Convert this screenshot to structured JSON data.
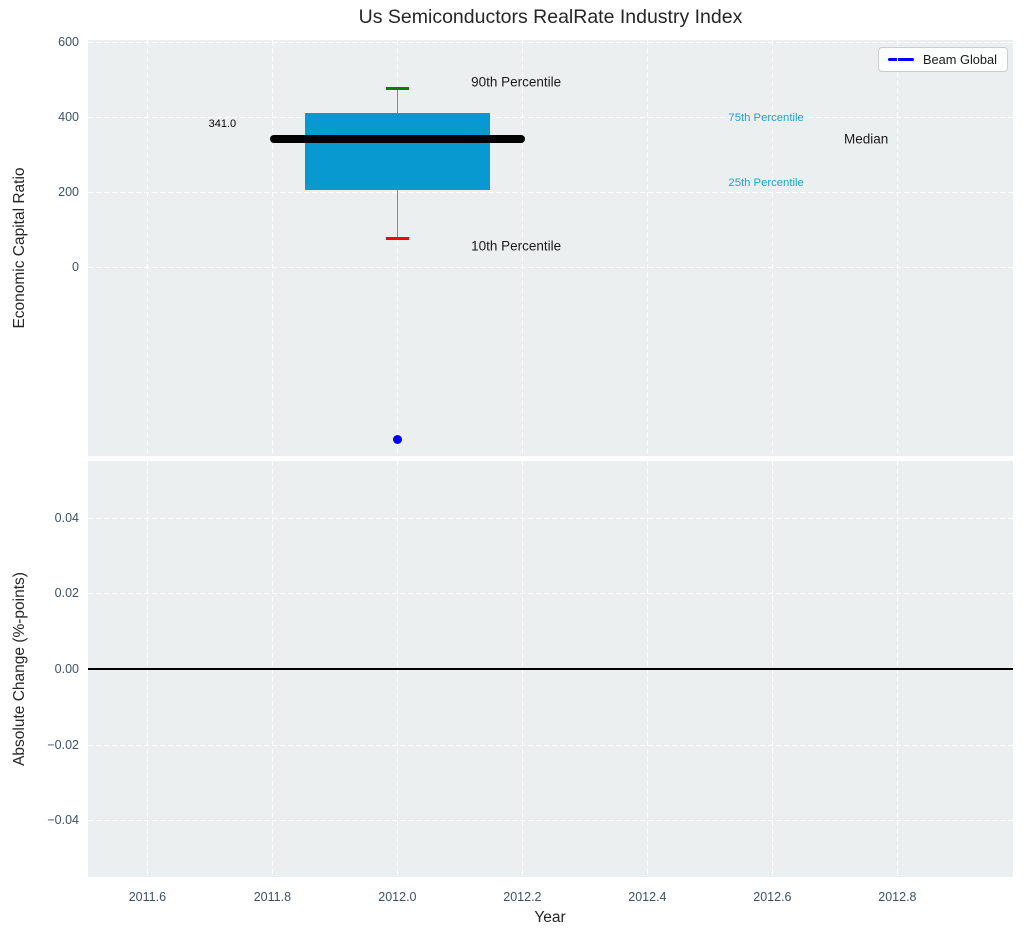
{
  "title": "Us Semiconductors RealRate Industry Index",
  "legend": {
    "label": "Beam Global",
    "line_color": "#0000ff",
    "loc": "upper right"
  },
  "colors": {
    "figure_bg": "#ffffff",
    "axes_bg": "#eceff0",
    "grid": "#ffffff",
    "tick_label": "#3d5166",
    "title": "#262626",
    "text": "#1a1a1a",
    "percentile_label": "#1ba2d5"
  },
  "chart_data": [
    {
      "type": "box",
      "panel": "top",
      "title": "Us Semiconductors RealRate Industry Index",
      "ylabel": "Economic Capital Ratio",
      "xlim": [
        2011.505,
        2012.985
      ],
      "ylim": [
        -505,
        605
      ],
      "xticks": [
        2011.6,
        2011.8,
        2012.0,
        2012.2,
        2012.4,
        2012.6,
        2012.8
      ],
      "xtick_labels": [],
      "yticks": [
        0,
        200,
        400,
        600
      ],
      "ytick_labels": [
        "0",
        "200",
        "400",
        "600"
      ],
      "grid": true,
      "legend_entries": [
        "Beam Global"
      ],
      "box": {
        "x": 2012.0,
        "p10": 75,
        "p25": 205,
        "median": 341.0,
        "p75": 410,
        "p90": 475,
        "box_halfwidth": 0.148,
        "median_halfwidth": 0.204,
        "cap_halfwidth": 0.018,
        "fill_color": "#0899d0",
        "median_color": "#000000",
        "whisker_color": "#888888",
        "cap_top_color": "#008000",
        "cap_bottom_color": "#ff0000"
      },
      "median_value_label": "341.0",
      "points": [
        {
          "name": "Beam Global",
          "x": 2012.0,
          "y": -460,
          "color": "#0000ff"
        }
      ],
      "annotations": [
        {
          "text": "90th Percentile",
          "x": 2012.19,
          "y": 493,
          "color": "#1a1a1a",
          "size": 13.5
        },
        {
          "text": "10th Percentile",
          "x": 2012.19,
          "y": 55,
          "color": "#1a1a1a",
          "size": 13.5
        },
        {
          "text": "75th Percentile",
          "x": 2012.59,
          "y": 397,
          "color": "#1ba2d5",
          "size": 11.3
        },
        {
          "text": "25th Percentile",
          "x": 2012.59,
          "y": 224,
          "color": "#1ba2d5",
          "size": 11.3
        },
        {
          "text": "Median",
          "x": 2012.75,
          "y": 341,
          "color": "#1a1a1a",
          "size": 13.5
        },
        {
          "text": "341.0",
          "x": 2011.72,
          "y": 382,
          "color": "#000000",
          "size": 11
        }
      ]
    },
    {
      "type": "line",
      "panel": "bottom",
      "xlabel": "Year",
      "ylabel": "Absolute Change (%-points)",
      "xlim": [
        2011.505,
        2012.985
      ],
      "ylim": [
        -0.055,
        0.055
      ],
      "xticks": [
        2011.6,
        2011.8,
        2012.0,
        2012.2,
        2012.4,
        2012.6,
        2012.8
      ],
      "xtick_labels": [
        "2011.6",
        "2011.8",
        "2012.0",
        "2012.2",
        "2012.4",
        "2012.6",
        "2012.8"
      ],
      "ytick_values": [
        0.04,
        0.02,
        0.0,
        -0.02,
        -0.04
      ],
      "ytick_labels": [
        "0.04",
        "0.02",
        "0.00",
        "−0.02",
        "−0.04"
      ],
      "grid": true,
      "hline": {
        "y": 0.0,
        "color": "#000000"
      },
      "series": []
    }
  ]
}
